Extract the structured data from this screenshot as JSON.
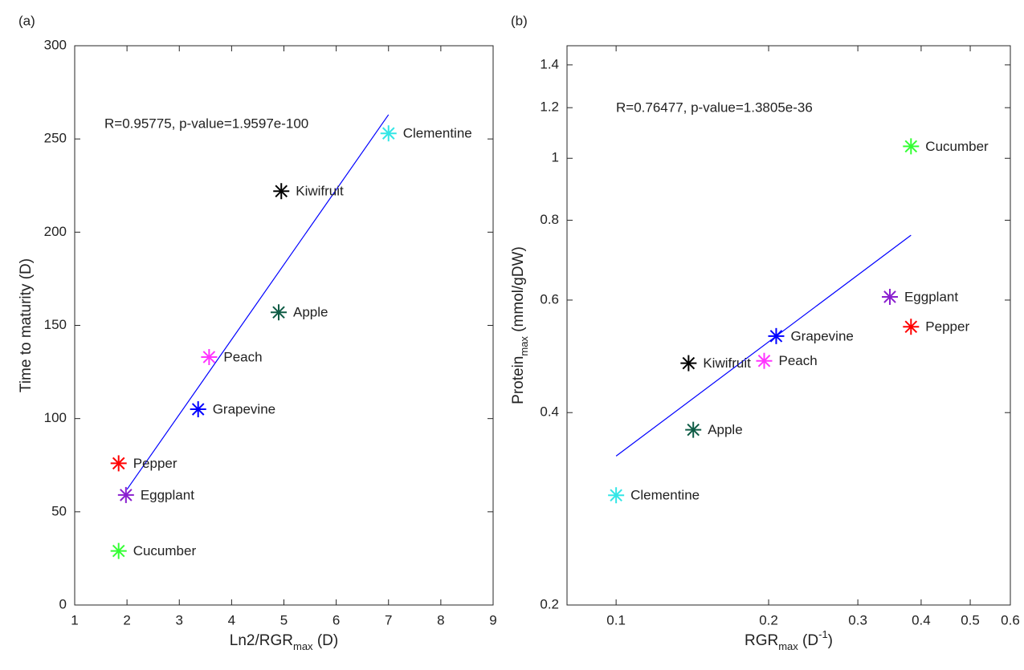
{
  "chart_data": [
    {
      "type": "scatter",
      "panel_label": "(a)",
      "annotation": "R=0.95775, p-value=1.9597e-100",
      "xlabel": [
        "Ln2/RGR",
        "max",
        " (D)"
      ],
      "ylabel": [
        "Time to maturity (D)"
      ],
      "xlim": [
        1,
        9
      ],
      "xticks": [
        1,
        2,
        3,
        4,
        5,
        6,
        7,
        8,
        9
      ],
      "ylim": [
        0,
        300
      ],
      "yticks": [
        0,
        50,
        100,
        150,
        200,
        250,
        300
      ],
      "xscale": "linear",
      "yscale": "linear",
      "series": [
        {
          "name": "Clementine",
          "color": "#33e6e6",
          "x": [
            7.0
          ],
          "values": [
            253
          ]
        },
        {
          "name": "Kiwifruit",
          "color": "#000000",
          "x": [
            4.95
          ],
          "values": [
            222
          ]
        },
        {
          "name": "Apple",
          "color": "#0e5c45",
          "x": [
            4.9
          ],
          "values": [
            157
          ]
        },
        {
          "name": "Peach",
          "color": "#ff33ff",
          "x": [
            3.57
          ],
          "values": [
            133
          ]
        },
        {
          "name": "Grapevine",
          "color": "#0000ff",
          "x": [
            3.36
          ],
          "values": [
            105
          ]
        },
        {
          "name": "Pepper",
          "color": "#ff0000",
          "x": [
            1.84
          ],
          "values": [
            76
          ]
        },
        {
          "name": "Eggplant",
          "color": "#8a1fcf",
          "x": [
            1.98
          ],
          "values": [
            59
          ]
        },
        {
          "name": "Cucumber",
          "color": "#33ff33",
          "x": [
            1.84
          ],
          "values": [
            29
          ]
        }
      ],
      "fit": {
        "color": "#0000ff",
        "x": [
          2.0,
          7.0
        ],
        "values": [
          62,
          263
        ]
      }
    },
    {
      "type": "scatter",
      "panel_label": "(b)",
      "annotation": "R=0.76477, p-value=1.3805e-36",
      "xlabel": [
        "RGR",
        "max",
        " (D",
        "-1",
        ")"
      ],
      "ylabel": [
        "Protein",
        "max",
        " (mmol/gDW)"
      ],
      "xlim": [
        0.08,
        0.6
      ],
      "xticks": [
        0.1,
        0.2,
        0.3,
        0.4,
        0.5,
        0.6
      ],
      "ylim": [
        0.2,
        1.5
      ],
      "yticks": [
        0.2,
        0.4,
        0.6,
        0.8,
        1,
        1.2,
        1.4
      ],
      "xscale": "log",
      "yscale": "log",
      "series": [
        {
          "name": "Cucumber",
          "color": "#33ff33",
          "x": [
            0.382
          ],
          "values": [
            1.044
          ]
        },
        {
          "name": "Eggplant",
          "color": "#8a1fcf",
          "x": [
            0.347
          ],
          "values": [
            0.607
          ]
        },
        {
          "name": "Pepper",
          "color": "#ff0000",
          "x": [
            0.382
          ],
          "values": [
            0.545
          ]
        },
        {
          "name": "Grapevine",
          "color": "#0000ff",
          "x": [
            0.207
          ],
          "values": [
            0.527
          ]
        },
        {
          "name": "Peach",
          "color": "#ff33ff",
          "x": [
            0.196
          ],
          "values": [
            0.482
          ]
        },
        {
          "name": "Kiwifruit",
          "color": "#000000",
          "x": [
            0.139
          ],
          "values": [
            0.478
          ]
        },
        {
          "name": "Apple",
          "color": "#0e5c45",
          "x": [
            0.142
          ],
          "values": [
            0.376
          ]
        },
        {
          "name": "Clementine",
          "color": "#33e6e6",
          "x": [
            0.1
          ],
          "values": [
            0.297
          ]
        }
      ],
      "fit": {
        "color": "#0000ff",
        "x": [
          0.1,
          0.382
        ],
        "values": [
          0.342,
          0.758
        ]
      }
    }
  ]
}
